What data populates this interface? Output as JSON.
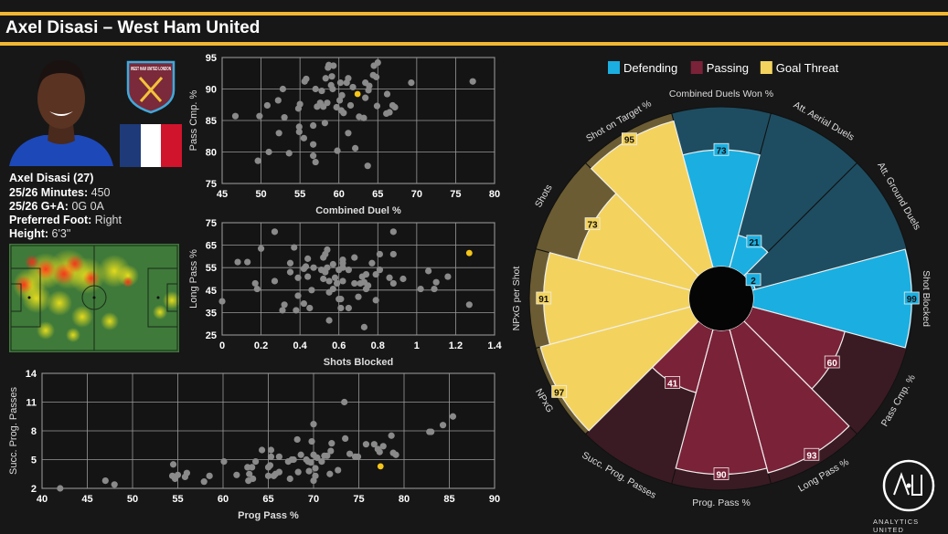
{
  "header": {
    "title": "Axel Disasi – West Ham United"
  },
  "player": {
    "name_line": "Axel Disasi (27)",
    "minutes_label": "25/26 Minutes:",
    "minutes_value": "450",
    "ga_label": "25/26 G+A:",
    "ga_value": "0G 0A",
    "foot_label": "Preferred Foot:",
    "foot_value": "Right",
    "height_label": "Height:",
    "height_value": "6'3\"",
    "club_crest_text": "WEST HAM UNITED LONDON",
    "flag_colors": [
      "#1f3a78",
      "#ffffff",
      "#d0142c"
    ]
  },
  "colors": {
    "highlight": "#f5c518",
    "point": "#8a8a8a",
    "defending": "#1aafe0",
    "passing": "#7a2238",
    "goal_threat": "#f3d35e"
  },
  "chart_data": [
    {
      "type": "scatter",
      "xlabel": "Combined Duel %",
      "ylabel": "Pass Cmp. %",
      "xlim": [
        45,
        80
      ],
      "ylim": [
        75,
        95
      ],
      "xticks": [
        45,
        50,
        55,
        60,
        65,
        70,
        75,
        80
      ],
      "yticks": [
        75,
        80,
        85,
        90,
        95
      ],
      "grid": true,
      "highlight": [
        62.4,
        89.2
      ],
      "points": [
        [
          46.7,
          85.7
        ],
        [
          49.6,
          78.6
        ],
        [
          49.8,
          85.7
        ],
        [
          50.8,
          87.4
        ],
        [
          51,
          80
        ],
        [
          52.2,
          88.2
        ],
        [
          52.3,
          83
        ],
        [
          52.8,
          90
        ],
        [
          53,
          85.5
        ],
        [
          53.6,
          79.8
        ],
        [
          54.8,
          86.9
        ],
        [
          54.9,
          84
        ],
        [
          54.9,
          83.2
        ],
        [
          55,
          87.6
        ],
        [
          55.5,
          82.2
        ],
        [
          55.6,
          91.2
        ],
        [
          55.8,
          91.6
        ],
        [
          56.7,
          84.2
        ],
        [
          56.7,
          81.2
        ],
        [
          56.7,
          79.4
        ],
        [
          57,
          78.4
        ],
        [
          57,
          90
        ],
        [
          57.2,
          87.2
        ],
        [
          57.6,
          87.8
        ],
        [
          57.8,
          89.7
        ],
        [
          58,
          87.2
        ],
        [
          58.2,
          84.6
        ],
        [
          58.3,
          91.7
        ],
        [
          58.5,
          87.8
        ],
        [
          58.6,
          93.4
        ],
        [
          58.7,
          93.8
        ],
        [
          59,
          90.6
        ],
        [
          59.1,
          92
        ],
        [
          59.2,
          90
        ],
        [
          59.3,
          93.7
        ],
        [
          59.7,
          87.1
        ],
        [
          59.8,
          80.2
        ],
        [
          60.1,
          88.2
        ],
        [
          60.2,
          91
        ],
        [
          60.3,
          86.6
        ],
        [
          60.4,
          89
        ],
        [
          60.6,
          86.2
        ],
        [
          61,
          91
        ],
        [
          61.2,
          91.7
        ],
        [
          61.2,
          83
        ],
        [
          61.5,
          87.4
        ],
        [
          61.8,
          90.3
        ],
        [
          62.1,
          80.6
        ],
        [
          62.6,
          85.6
        ],
        [
          63.2,
          85.4
        ],
        [
          63.4,
          88.6
        ],
        [
          63.4,
          91
        ],
        [
          63.7,
          77.8
        ],
        [
          63.8,
          89.8
        ],
        [
          63.9,
          90.5
        ],
        [
          64.4,
          92.2
        ],
        [
          64.5,
          93.7
        ],
        [
          64.8,
          91.9
        ],
        [
          64.9,
          87.3
        ],
        [
          65,
          94.2
        ],
        [
          66.1,
          86.1
        ],
        [
          66.2,
          89.2
        ],
        [
          66.5,
          86.3
        ],
        [
          66.9,
          87.4
        ],
        [
          67.2,
          87.1
        ],
        [
          69.3,
          91
        ],
        [
          77.2,
          91.2
        ]
      ]
    },
    {
      "type": "scatter",
      "xlabel": "Shots Blocked",
      "ylabel": "Long Pass %",
      "xlim": [
        0,
        1.4
      ],
      "ylim": [
        25,
        75
      ],
      "xticks": [
        0,
        0.2,
        0.4,
        0.6,
        0.8,
        1,
        1.2,
        1.4
      ],
      "yticks": [
        25,
        35,
        45,
        55,
        65,
        75
      ],
      "grid": true,
      "highlight": [
        1.27,
        61.5
      ],
      "points": [
        [
          0,
          40
        ],
        [
          0.08,
          57.5
        ],
        [
          0.13,
          57.5
        ],
        [
          0.17,
          48
        ],
        [
          0.18,
          45.5
        ],
        [
          0.2,
          63.5
        ],
        [
          0.27,
          71
        ],
        [
          0.27,
          49
        ],
        [
          0.31,
          36
        ],
        [
          0.32,
          38.5
        ],
        [
          0.35,
          57
        ],
        [
          0.35,
          53
        ],
        [
          0.37,
          64
        ],
        [
          0.38,
          36
        ],
        [
          0.39,
          42.5
        ],
        [
          0.39,
          50.5
        ],
        [
          0.42,
          39
        ],
        [
          0.42,
          54.5
        ],
        [
          0.43,
          55.5
        ],
        [
          0.44,
          59
        ],
        [
          0.44,
          51
        ],
        [
          0.45,
          37
        ],
        [
          0.46,
          45
        ],
        [
          0.47,
          55
        ],
        [
          0.51,
          54
        ],
        [
          0.52,
          50
        ],
        [
          0.52,
          59.5
        ],
        [
          0.53,
          61
        ],
        [
          0.53,
          53
        ],
        [
          0.54,
          63
        ],
        [
          0.54,
          55
        ],
        [
          0.55,
          49
        ],
        [
          0.55,
          44
        ],
        [
          0.55,
          31.5
        ],
        [
          0.57,
          56.5
        ],
        [
          0.57,
          45.5
        ],
        [
          0.58,
          50.5
        ],
        [
          0.59,
          48
        ],
        [
          0.6,
          54
        ],
        [
          0.6,
          41
        ],
        [
          0.61,
          41
        ],
        [
          0.61,
          37
        ],
        [
          0.62,
          58.5
        ],
        [
          0.62,
          57
        ],
        [
          0.62,
          49
        ],
        [
          0.62,
          55
        ],
        [
          0.65,
          54
        ],
        [
          0.65,
          37
        ],
        [
          0.68,
          59.5
        ],
        [
          0.68,
          48
        ],
        [
          0.7,
          42
        ],
        [
          0.71,
          48
        ],
        [
          0.72,
          51
        ],
        [
          0.73,
          28.5
        ],
        [
          0.73,
          48.5
        ],
        [
          0.74,
          52
        ],
        [
          0.74,
          45.5
        ],
        [
          0.75,
          47
        ],
        [
          0.77,
          57
        ],
        [
          0.79,
          40.5
        ],
        [
          0.79,
          52
        ],
        [
          0.81,
          61
        ],
        [
          0.81,
          54
        ],
        [
          0.86,
          50.5
        ],
        [
          0.88,
          71
        ],
        [
          0.88,
          61
        ],
        [
          0.88,
          48
        ],
        [
          0.93,
          50
        ],
        [
          1.02,
          45.5
        ],
        [
          1.06,
          53.5
        ],
        [
          1.09,
          45.5
        ],
        [
          1.1,
          48.5
        ],
        [
          1.16,
          51
        ],
        [
          1.27,
          38.5
        ]
      ]
    },
    {
      "type": "scatter",
      "xlabel": "Prog Pass %",
      "ylabel": "Succ. Prog. Passes",
      "xlim": [
        40,
        90
      ],
      "ylim": [
        2,
        14
      ],
      "xticks": [
        40,
        45,
        50,
        55,
        60,
        65,
        70,
        75,
        80,
        85,
        90
      ],
      "yticks": [
        2,
        5,
        8,
        11,
        14
      ],
      "grid": true,
      "highlight": [
        77.4,
        4.3
      ],
      "points": [
        [
          42,
          2
        ],
        [
          47,
          2.8
        ],
        [
          48,
          2.4
        ],
        [
          54.5,
          4.5
        ],
        [
          54.4,
          3.3
        ],
        [
          54.7,
          3
        ],
        [
          55,
          3.4
        ],
        [
          55.8,
          3.2
        ],
        [
          56,
          3.6
        ],
        [
          57.9,
          2.7
        ],
        [
          58.5,
          3.3
        ],
        [
          60.1,
          4.8
        ],
        [
          61.5,
          3.4
        ],
        [
          62.7,
          4.2
        ],
        [
          62.8,
          2.8
        ],
        [
          62.9,
          3.5
        ],
        [
          63.2,
          4.2
        ],
        [
          63.3,
          3
        ],
        [
          63.6,
          4.8
        ],
        [
          64.3,
          6
        ],
        [
          65,
          4.2
        ],
        [
          65,
          3.3
        ],
        [
          65.2,
          4.4
        ],
        [
          65.3,
          6
        ],
        [
          65.3,
          5.3
        ],
        [
          65.6,
          3.3
        ],
        [
          65.8,
          3.5
        ],
        [
          66.2,
          5.3
        ],
        [
          66.2,
          3.7
        ],
        [
          67.2,
          4.8
        ],
        [
          67.4,
          3
        ],
        [
          67.6,
          5
        ],
        [
          67.8,
          5
        ],
        [
          68.2,
          7.1
        ],
        [
          68.3,
          3.7
        ],
        [
          68.6,
          5.5
        ],
        [
          69.2,
          5
        ],
        [
          69.4,
          4.8
        ],
        [
          69.5,
          3.8
        ],
        [
          69.7,
          4.7
        ],
        [
          69.8,
          6.9
        ],
        [
          70,
          8.7
        ],
        [
          70,
          5.5
        ],
        [
          70,
          2.8
        ],
        [
          70.2,
          4.1
        ],
        [
          70.2,
          3.3
        ],
        [
          70.4,
          5.2
        ],
        [
          70.9,
          4.8
        ],
        [
          71.2,
          5.4
        ],
        [
          71.5,
          5.4
        ],
        [
          71.8,
          3.5
        ],
        [
          71.9,
          5.9
        ],
        [
          72,
          6.7
        ],
        [
          72.7,
          3.9
        ],
        [
          73.4,
          11
        ],
        [
          73.5,
          7.2
        ],
        [
          74,
          5.6
        ],
        [
          74.6,
          5.3
        ],
        [
          74.9,
          5.3
        ],
        [
          75.8,
          6.6
        ],
        [
          76.7,
          6.6
        ],
        [
          77.1,
          6.1
        ],
        [
          77.3,
          5.8
        ],
        [
          77.7,
          6.4
        ],
        [
          78.6,
          7.5
        ],
        [
          78.8,
          5.7
        ],
        [
          79.1,
          5.5
        ],
        [
          82.8,
          7.9
        ],
        [
          83,
          7.9
        ],
        [
          84.3,
          8.6
        ],
        [
          85.4,
          9.5
        ]
      ]
    },
    {
      "type": "radial-bar",
      "legend": [
        {
          "name": "Defending",
          "color": "#1aafe0"
        },
        {
          "name": "Passing",
          "color": "#7a2238"
        },
        {
          "name": "Goal Threat",
          "color": "#f3d35e"
        }
      ],
      "legend_position": "top",
      "range": [
        0,
        100
      ],
      "metrics": [
        {
          "label": "Combined Duels Won %",
          "value": 73,
          "group": "Defending"
        },
        {
          "label": "Att. Aerial Duels",
          "value": 21,
          "group": "Defending"
        },
        {
          "label": "Att. Ground Duels",
          "value": 2,
          "group": "Defending"
        },
        {
          "label": "Shot Blocked",
          "value": 99,
          "group": "Defending"
        },
        {
          "label": "Pass Cmp. %",
          "value": 60,
          "group": "Passing"
        },
        {
          "label": "Long Pass %",
          "value": 93,
          "group": "Passing"
        },
        {
          "label": "Prog. Pass %",
          "value": 90,
          "group": "Passing"
        },
        {
          "label": "Succ. Prog. Passes",
          "value": 41,
          "group": "Passing"
        },
        {
          "label": "NPxG",
          "value": 97,
          "group": "Goal Threat"
        },
        {
          "label": "NPxG per Shot",
          "value": 91,
          "group": "Goal Threat"
        },
        {
          "label": "Shots",
          "value": 73,
          "group": "Goal Threat"
        },
        {
          "label": "Shot on Target %",
          "value": 95,
          "group": "Goal Threat"
        }
      ]
    }
  ],
  "branding": {
    "logo_text": "A•U",
    "name": "ANALYTICS UNITED"
  }
}
